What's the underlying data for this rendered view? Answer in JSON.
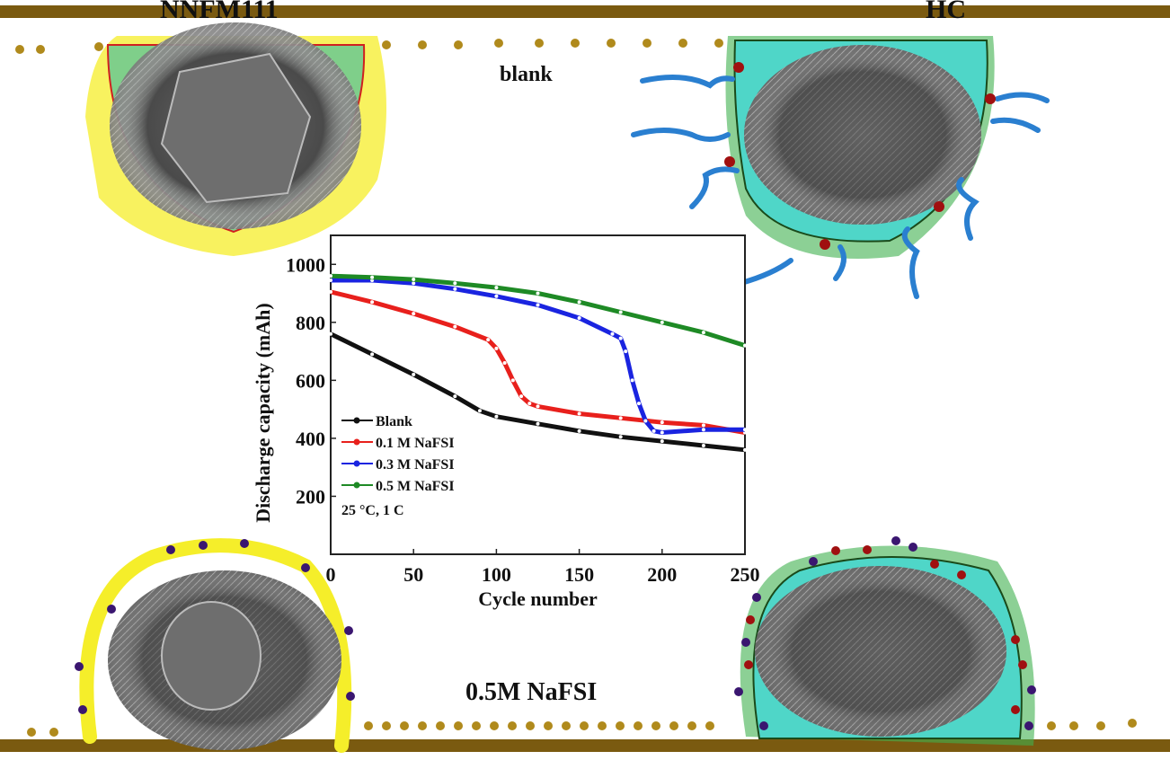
{
  "labels": {
    "cathode": "NNFM111",
    "anode": "HC",
    "top_condition": "blank",
    "bottom_condition": "0.5M NaFSI"
  },
  "colors": {
    "current_collector": "#7a5a10",
    "cathode_coating": "#f5ee2a",
    "anode_coating": "#3fb04f",
    "anode_fill": "#4fd6c8",
    "solvent_chains": "#2a7fd0",
    "red_particles": "#a01010",
    "purple_particles": "#3a1670"
  },
  "chart_data": {
    "type": "line",
    "xlabel": "Cycle number",
    "ylabel": "Discharge capacity (mAh)",
    "xlim": [
      0,
      250
    ],
    "ylim": [
      0,
      1100
    ],
    "xticks": [
      0,
      50,
      100,
      150,
      200,
      250
    ],
    "yticks": [
      200,
      400,
      600,
      800,
      1000
    ],
    "annotation": "25 °C, 1 C",
    "legend_placement": "lower-left",
    "grid": false,
    "series": [
      {
        "name": "Blank",
        "color": "#111111",
        "x": [
          0,
          25,
          50,
          75,
          90,
          100,
          125,
          150,
          175,
          200,
          225,
          250
        ],
        "y": [
          760,
          690,
          620,
          545,
          495,
          475,
          450,
          425,
          405,
          390,
          375,
          360
        ]
      },
      {
        "name": "0.1 M NaFSI",
        "color": "#e8201c",
        "x": [
          0,
          25,
          50,
          75,
          95,
          100,
          105,
          110,
          115,
          120,
          125,
          150,
          175,
          200,
          225,
          250
        ],
        "y": [
          905,
          870,
          830,
          785,
          740,
          710,
          660,
          600,
          545,
          520,
          510,
          485,
          470,
          455,
          445,
          420
        ]
      },
      {
        "name": "0.3 M NaFSI",
        "color": "#1a24e0",
        "x": [
          0,
          25,
          50,
          75,
          100,
          125,
          150,
          170,
          175,
          178,
          182,
          186,
          190,
          195,
          200,
          225,
          250
        ],
        "y": [
          945,
          945,
          935,
          915,
          890,
          860,
          815,
          760,
          745,
          700,
          600,
          520,
          460,
          425,
          420,
          430,
          430
        ]
      },
      {
        "name": "0.5 M NaFSI",
        "color": "#1e8a25",
        "x": [
          0,
          25,
          50,
          75,
          100,
          125,
          150,
          175,
          200,
          225,
          250
        ],
        "y": [
          960,
          955,
          948,
          935,
          920,
          900,
          870,
          835,
          800,
          765,
          720
        ]
      }
    ]
  }
}
